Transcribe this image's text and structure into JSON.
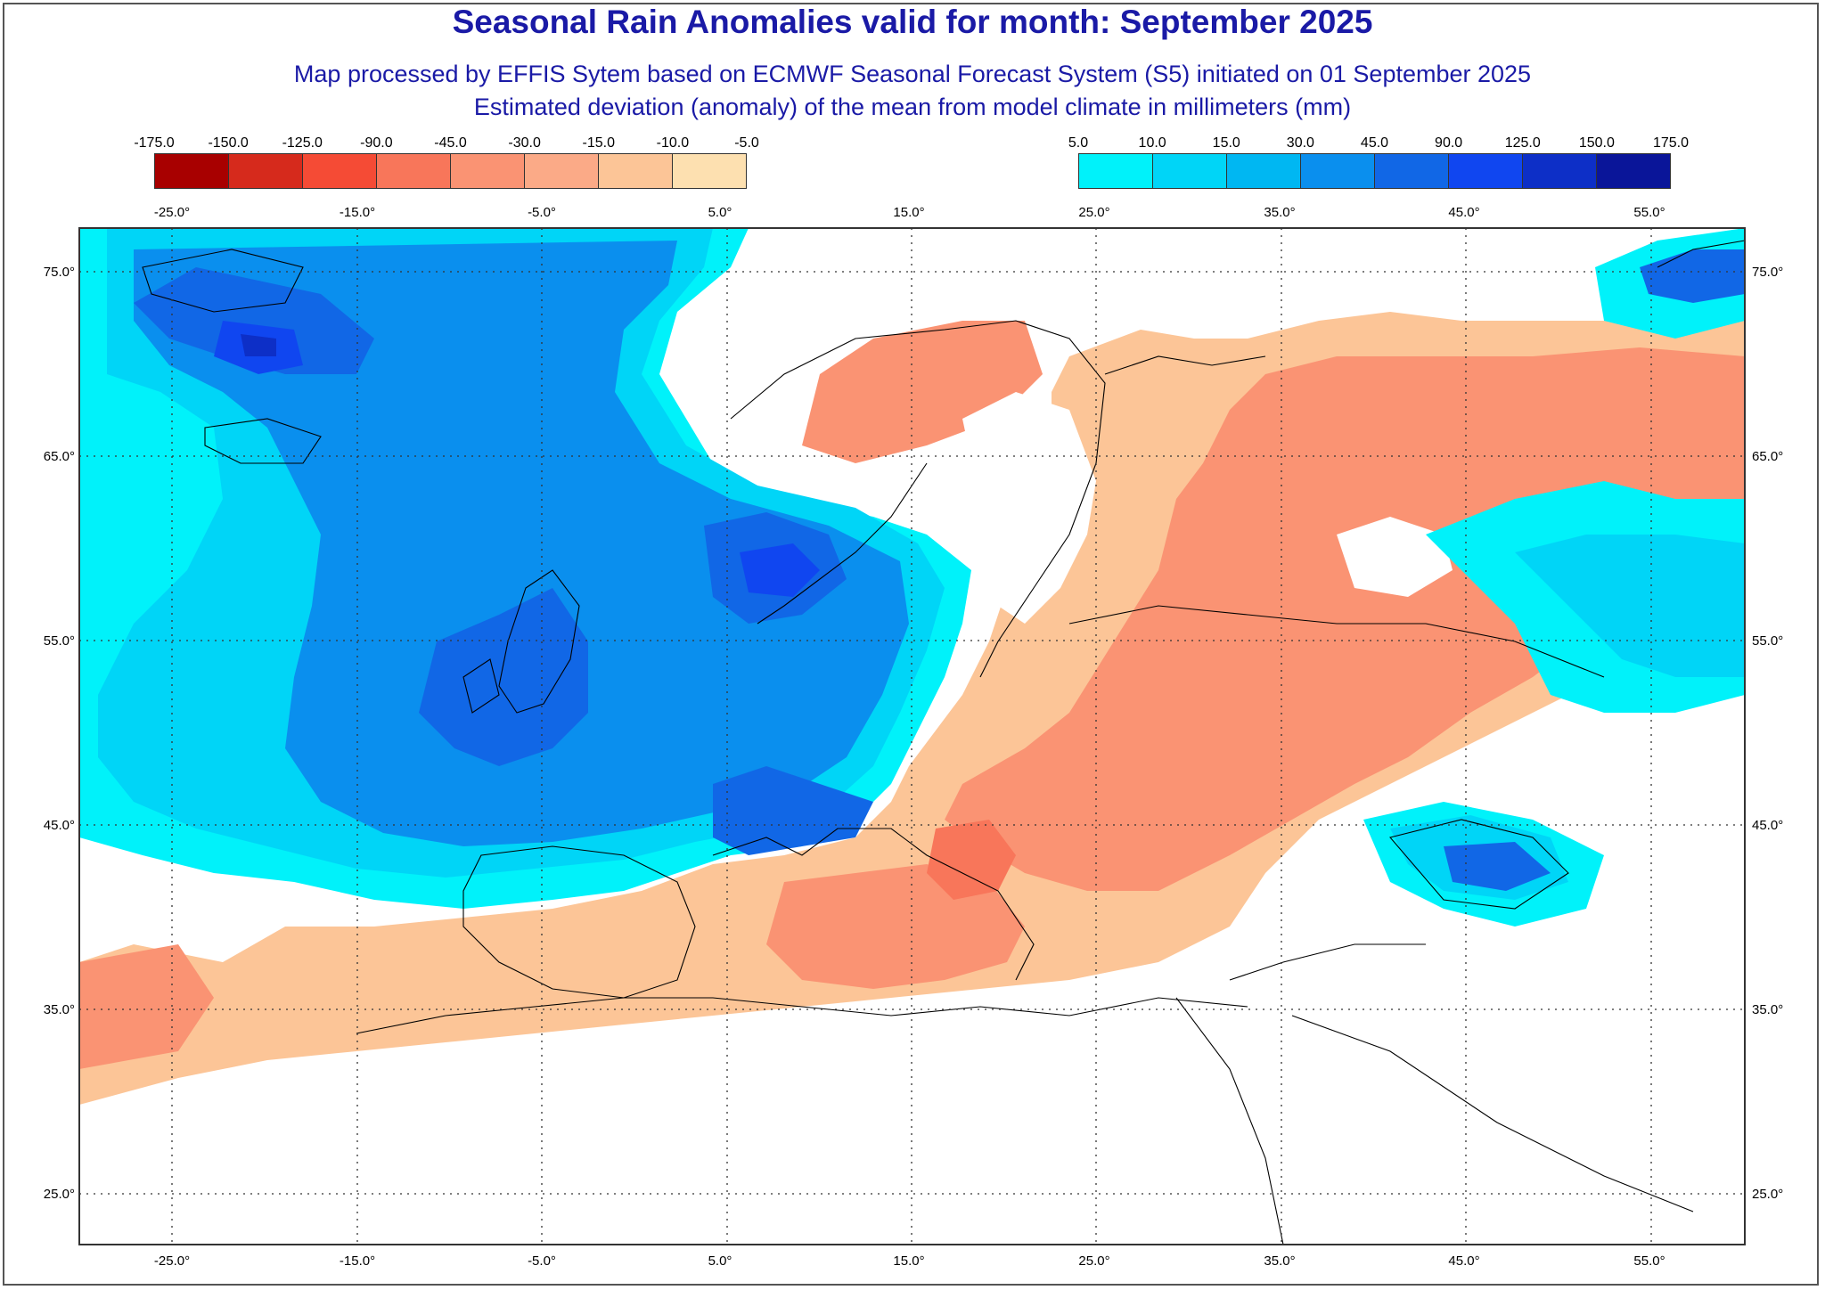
{
  "title": "Seasonal Rain Anomalies valid for month: September 2025",
  "subtitle1": "Map processed by EFFIS Sytem based on ECMWF Seasonal Forecast System (S5) initiated on 01 September 2025",
  "subtitle2": "Estimated deviation (anomaly) of the mean from model climate in millimeters (mm)",
  "legend_negative": {
    "labels": [
      "-175.0",
      "-150.0",
      "-125.0",
      "-90.0",
      "-45.0",
      "-30.0",
      "-15.0",
      "-10.0",
      "-5.0"
    ],
    "colors": [
      "#a80000",
      "#d62a1c",
      "#f54b35",
      "#f8765a",
      "#fa9373",
      "#fbaa87",
      "#fcc597",
      "#fde0b0"
    ]
  },
  "legend_positive": {
    "labels": [
      "5.0",
      "10.0",
      "15.0",
      "30.0",
      "45.0",
      "90.0",
      "125.0",
      "150.0",
      "175.0"
    ],
    "colors": [
      "#00f2fa",
      "#00d5f7",
      "#00b7f2",
      "#0a8fee",
      "#1167e6",
      "#1046f0",
      "#0d2fc7",
      "#0a1599"
    ]
  },
  "longitude_labels": [
    "-25.0°",
    "-15.0°",
    "-5.0°",
    "5.0°",
    "15.0°",
    "25.0°",
    "35.0°",
    "45.0°",
    "55.0°"
  ],
  "latitude_labels": [
    "75.0°",
    "65.0°",
    "55.0°",
    "45.0°",
    "35.0°",
    "25.0°"
  ]
}
